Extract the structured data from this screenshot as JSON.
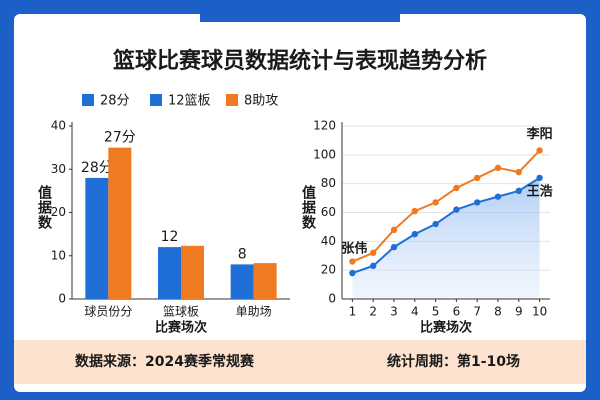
{
  "title": "篮球比赛球员数据统计与表现趋势分析",
  "legend": [
    {
      "label": "28分",
      "color": "#1f6fd6"
    },
    {
      "label": "12篮板",
      "color": "#1f6fd6"
    },
    {
      "label": "8助攻",
      "color": "#f07a22"
    }
  ],
  "footer": {
    "source": "数据来源：2024赛季常规赛",
    "period": "统计周期：第1-10场"
  },
  "chart_data": [
    {
      "type": "bar",
      "categories": [
        "球员份分",
        "篮球板",
        "单助场"
      ],
      "xlabel": "比赛场次",
      "ylabel": "值据数",
      "ylim": [
        0,
        40
      ],
      "yticks": [
        0,
        10,
        20,
        30,
        40
      ],
      "series": [
        {
          "color": "#1f6fd6",
          "values": [
            28,
            12,
            8
          ],
          "value_labels": [
            "28分",
            "12",
            "8"
          ]
        },
        {
          "color": "#f07a22",
          "values": [
            35,
            12.3,
            8.3
          ]
        }
      ],
      "annotations": [
        "27分"
      ]
    },
    {
      "type": "line",
      "x": [
        1,
        2,
        3,
        4,
        5,
        6,
        7,
        8,
        9,
        10
      ],
      "xlabel": "比赛场次",
      "ylabel": "值据数",
      "xlim": [
        0.5,
        10.5
      ],
      "xticks": [
        1,
        2,
        3,
        4,
        5,
        6,
        7,
        8,
        9,
        10
      ],
      "ylim": [
        0,
        120
      ],
      "yticks": [
        0,
        20,
        40,
        60,
        80,
        100,
        120
      ],
      "grid": true,
      "series": [
        {
          "name": "李阳",
          "color": "#f07a22",
          "values": [
            26,
            32,
            48,
            61,
            67,
            77,
            84,
            91,
            88,
            103
          ]
        },
        {
          "name": "王浩",
          "color": "#1f6fd6",
          "values": [
            18,
            23,
            36,
            45,
            52,
            62,
            67,
            71,
            75,
            84
          ],
          "area": true
        }
      ],
      "annotations": [
        "张伟"
      ]
    }
  ]
}
